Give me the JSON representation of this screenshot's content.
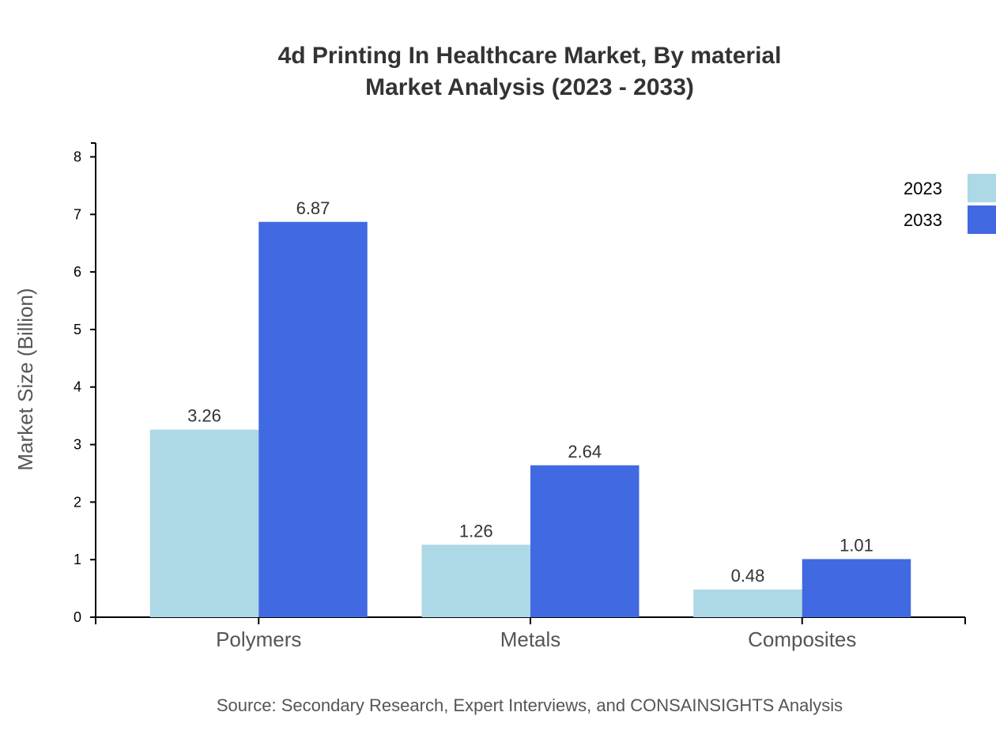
{
  "chart_data": {
    "type": "bar",
    "title": "4d Printing In Healthcare Market, By material",
    "subtitle": "Market Analysis (2023 - 2033)",
    "xlabel": "",
    "ylabel": "Market Size (Billion)",
    "ylim": [
      0,
      8.24
    ],
    "yticks": [
      0,
      1,
      2,
      3,
      4,
      5,
      6,
      7,
      8
    ],
    "categories": [
      "Polymers",
      "Metals",
      "Composites"
    ],
    "series": [
      {
        "name": "2023",
        "values": [
          3.26,
          1.26,
          0.48
        ],
        "color": "#ADD8E6"
      },
      {
        "name": "2033",
        "values": [
          6.87,
          2.64,
          1.01
        ],
        "color": "#4169E1"
      }
    ],
    "grid": false,
    "legend": "top-right",
    "source": "Source: Secondary Research, Expert Interviews, and CONSAINSIGHTS Analysis"
  }
}
